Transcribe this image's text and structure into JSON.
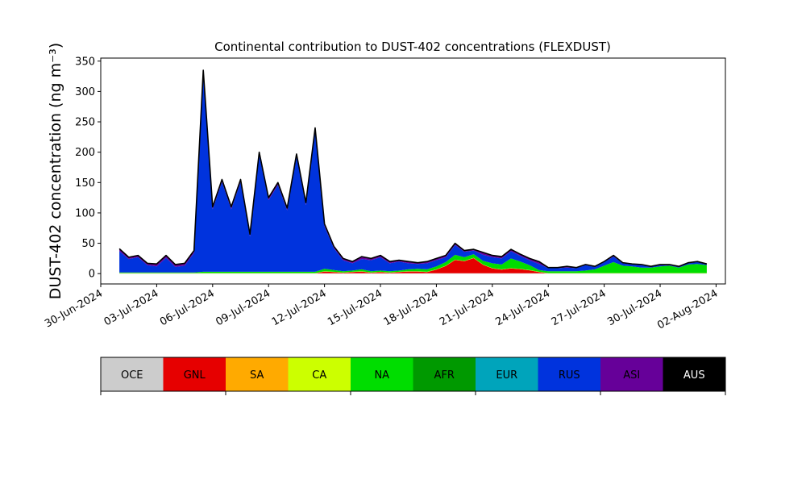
{
  "chart_data": {
    "type": "area",
    "stacked": true,
    "title": "Continental contribution to DUST-402 concentrations (FLEXDUST)",
    "ylabel": "DUST-402 concentration (ng m⁻³)",
    "xlabel": "",
    "ylim": [
      -17,
      355
    ],
    "xlim": [
      "2024-06-30T00:00",
      "2024-08-02T12:00"
    ],
    "yticks": [
      0,
      50,
      100,
      150,
      200,
      250,
      300,
      350
    ],
    "xticks": [
      "30-Jun-2024",
      "03-Jul-2024",
      "06-Jul-2024",
      "09-Jul-2024",
      "12-Jul-2024",
      "15-Jul-2024",
      "18-Jul-2024",
      "21-Jul-2024",
      "24-Jul-2024",
      "27-Jul-2024",
      "30-Jul-2024",
      "02-Aug-2024"
    ],
    "x_dates": [
      "2024-07-01",
      "2024-07-01T12:00",
      "2024-07-02",
      "2024-07-02T12:00",
      "2024-07-03",
      "2024-07-03T12:00",
      "2024-07-04",
      "2024-07-04T12:00",
      "2024-07-05",
      "2024-07-05T12:00",
      "2024-07-06",
      "2024-07-06T12:00",
      "2024-07-07",
      "2024-07-07T12:00",
      "2024-07-08",
      "2024-07-08T12:00",
      "2024-07-09",
      "2024-07-09T12:00",
      "2024-07-10",
      "2024-07-10T12:00",
      "2024-07-11",
      "2024-07-11T12:00",
      "2024-07-12",
      "2024-07-12T12:00",
      "2024-07-13",
      "2024-07-13T12:00",
      "2024-07-14",
      "2024-07-14T12:00",
      "2024-07-15",
      "2024-07-15T12:00",
      "2024-07-16",
      "2024-07-16T12:00",
      "2024-07-17",
      "2024-07-17T12:00",
      "2024-07-18",
      "2024-07-18T12:00",
      "2024-07-19",
      "2024-07-19T12:00",
      "2024-07-20",
      "2024-07-20T12:00",
      "2024-07-21",
      "2024-07-21T12:00",
      "2024-07-22",
      "2024-07-22T12:00",
      "2024-07-23",
      "2024-07-23T12:00",
      "2024-07-24",
      "2024-07-24T12:00",
      "2024-07-25",
      "2024-07-25T12:00",
      "2024-07-26",
      "2024-07-26T12:00",
      "2024-07-27",
      "2024-07-27T12:00",
      "2024-07-28",
      "2024-07-28T12:00",
      "2024-07-29",
      "2024-07-29T12:00",
      "2024-07-30",
      "2024-07-30T12:00",
      "2024-07-31",
      "2024-07-31T12:00",
      "2024-08-01",
      "2024-08-01T12:00"
    ],
    "total": [
      41,
      27,
      30,
      17,
      16,
      30,
      15,
      17,
      38,
      335,
      110,
      155,
      110,
      155,
      65,
      200,
      125,
      150,
      108,
      197,
      117,
      240,
      82,
      45,
      25,
      20,
      28,
      25,
      30,
      20,
      22,
      20,
      18,
      20,
      25,
      30,
      50,
      38,
      40,
      35,
      30,
      28,
      40,
      32,
      25,
      20,
      10,
      10,
      12,
      10,
      15,
      12,
      20,
      30,
      18,
      16,
      15,
      12,
      15,
      15,
      12,
      18,
      20,
      16
    ],
    "series": [
      {
        "name": "OCE",
        "color": "#cccccc",
        "values": [
          0.5,
          0.5,
          0.5,
          0.5,
          0.5,
          0.5,
          0.5,
          0.5,
          0.5,
          0.5,
          0.5,
          0.5,
          0.5,
          0.5,
          0.5,
          0.5,
          0.5,
          0.5,
          0.5,
          0.5,
          0.5,
          0.5,
          0.5,
          0.5,
          0.5,
          0.5,
          0.5,
          0.5,
          0.5,
          0.5,
          0.5,
          0.5,
          0.5,
          0.5,
          0.5,
          0.5,
          0.5,
          0.5,
          0.5,
          0.5,
          0.5,
          0.5,
          0.5,
          0.5,
          0.5,
          0.5,
          0.5,
          0.5,
          0.5,
          0.5,
          0.5,
          0.5,
          0.5,
          0.5,
          0.5,
          0.5,
          0.5,
          0.5,
          0.5,
          0.5,
          0.5,
          0.5,
          0.5,
          0.5
        ]
      },
      {
        "name": "GNL",
        "color": "#e60000",
        "values": [
          0,
          0,
          0,
          0,
          0,
          0,
          0,
          0,
          0,
          0,
          0,
          0,
          0,
          0,
          0,
          0,
          0,
          0,
          0,
          0,
          0,
          0,
          3,
          2,
          1,
          2,
          3,
          1,
          2,
          1,
          2,
          3,
          3,
          2,
          6,
          12,
          22,
          20,
          25,
          14,
          8,
          6,
          8,
          7,
          5,
          2,
          0,
          0,
          0,
          0,
          0,
          0,
          0,
          0,
          0,
          0,
          0,
          0,
          0,
          0,
          0,
          0,
          0,
          0
        ]
      },
      {
        "name": "SA",
        "color": "#ffaa00",
        "values": [
          0,
          0,
          0,
          0,
          0,
          0,
          0,
          0,
          0,
          0,
          0,
          0,
          0,
          0,
          0,
          0,
          0,
          0,
          0,
          0,
          0,
          0,
          0,
          0,
          0,
          0,
          0,
          0,
          0,
          0,
          0,
          0,
          0,
          0,
          0,
          0,
          0,
          0,
          0,
          0,
          0,
          0,
          0,
          0,
          0,
          0,
          0,
          0,
          0,
          0,
          0,
          0,
          0,
          0,
          0,
          0,
          0,
          0,
          0,
          0,
          0,
          0,
          0,
          0
        ]
      },
      {
        "name": "CA",
        "color": "#ccff00",
        "values": [
          0.5,
          0.5,
          0.5,
          0.5,
          0.5,
          0.5,
          0.5,
          0.5,
          0.5,
          0.5,
          0.5,
          0.5,
          0.5,
          0.5,
          0.5,
          0.5,
          0.5,
          0.5,
          0.5,
          0.5,
          0.5,
          0.5,
          0.5,
          0.5,
          0.5,
          0.5,
          0.5,
          0.5,
          0.5,
          0.5,
          0.5,
          0.5,
          0.5,
          0.5,
          0.5,
          0.5,
          0.5,
          0.5,
          0.5,
          0.5,
          0.5,
          0.5,
          0.5,
          0.5,
          0.5,
          0.5,
          0.5,
          0.5,
          0.5,
          0.5,
          0.5,
          0.5,
          0.5,
          0.5,
          0.5,
          0.5,
          0.5,
          0.5,
          0.5,
          0.5,
          0.5,
          0.5,
          0.5,
          0.5
        ]
      },
      {
        "name": "NA",
        "color": "#00dd00",
        "values": [
          1,
          1,
          1,
          1,
          1,
          1,
          1,
          1,
          1,
          2,
          2,
          2,
          2,
          2,
          2,
          2,
          2,
          2,
          2,
          2,
          2,
          2,
          4,
          3,
          2,
          2,
          3,
          2,
          2,
          2,
          2,
          3,
          4,
          4,
          5,
          6,
          8,
          6,
          6,
          6,
          8,
          8,
          16,
          12,
          8,
          3,
          3,
          3,
          3,
          3,
          4,
          6,
          12,
          18,
          12,
          11,
          9,
          9,
          11,
          12,
          9,
          14,
          15,
          13
        ]
      },
      {
        "name": "AFR",
        "color": "#009900",
        "values": [
          0,
          0,
          0,
          0,
          0,
          0,
          0,
          0,
          0,
          0,
          0,
          0,
          0,
          0,
          0,
          0,
          0,
          0,
          0,
          0,
          0,
          0,
          0,
          0,
          0,
          0,
          0,
          0,
          0,
          0,
          0,
          0,
          0,
          0,
          0,
          0,
          0,
          0,
          0,
          0,
          0,
          0,
          0,
          0,
          0,
          0,
          0,
          0,
          0,
          0,
          0,
          0,
          0,
          0,
          0,
          0,
          0,
          0,
          0,
          0,
          0,
          0,
          0,
          0
        ]
      },
      {
        "name": "EUR",
        "color": "#00a4bb",
        "values": [
          0,
          0,
          0,
          0,
          0,
          0,
          0,
          0,
          0,
          0,
          0,
          0,
          0,
          0,
          0,
          0,
          0,
          0,
          0,
          0,
          0,
          0,
          0,
          0,
          0,
          0,
          0,
          0,
          0,
          0,
          0,
          0,
          0,
          0,
          0,
          0,
          0,
          0,
          0,
          0,
          0,
          0,
          0,
          0,
          0,
          0,
          0,
          0,
          0,
          0,
          0,
          0,
          0,
          0,
          0,
          0,
          0,
          0,
          0,
          0,
          0,
          0,
          0,
          0
        ]
      },
      {
        "name": "RUS",
        "color": "#0033dd",
        "values": [
          35,
          22,
          25,
          12,
          10,
          24,
          9,
          11,
          32,
          328,
          103,
          148,
          103,
          148,
          58,
          193,
          118,
          143,
          101,
          190,
          110,
          233,
          70,
          36,
          18,
          12,
          17,
          18,
          22,
          13,
          15,
          10,
          8,
          10,
          10,
          8,
          16,
          9,
          6,
          10,
          10,
          10,
          12,
          9,
          8,
          10,
          5,
          5,
          6,
          5,
          9,
          4,
          6,
          9,
          4,
          3,
          4,
          2,
          2,
          1,
          1,
          2,
          3,
          1
        ]
      },
      {
        "name": "ASI",
        "color": "#660099",
        "values": [
          4,
          3,
          3,
          3,
          4,
          4,
          4,
          4,
          4,
          4,
          4,
          4,
          4,
          4,
          4,
          4,
          4,
          4,
          4,
          4,
          4,
          4,
          4,
          3,
          3,
          3,
          4,
          3,
          3,
          3,
          2,
          3,
          2,
          3,
          3,
          3,
          3,
          2,
          2,
          4,
          3,
          3,
          3,
          3,
          3,
          4,
          1,
          1,
          2,
          1,
          1,
          1,
          1,
          2,
          1,
          1,
          1,
          0,
          1,
          1,
          1,
          1,
          1,
          1
        ]
      },
      {
        "name": "AUS",
        "color": "#000000",
        "values": [
          0,
          0,
          0,
          0,
          0,
          0,
          0,
          0,
          0,
          0,
          0,
          0,
          0,
          0,
          0,
          0,
          0,
          0,
          0,
          0,
          0,
          0,
          0,
          0,
          0,
          0,
          0,
          0,
          0,
          0,
          0,
          0,
          0,
          0,
          0,
          0,
          0,
          0,
          0,
          0,
          0,
          0,
          0,
          0,
          0,
          0,
          0,
          0,
          0,
          0,
          0,
          0,
          0,
          0,
          0,
          0,
          0,
          0,
          0,
          0,
          0,
          0,
          0,
          0
        ]
      }
    ],
    "legend": [
      "OCE",
      "GNL",
      "SA",
      "CA",
      "NA",
      "AFR",
      "EUR",
      "RUS",
      "ASI",
      "AUS"
    ],
    "legend_text_colors": [
      "#000000",
      "#000000",
      "#000000",
      "#000000",
      "#000000",
      "#000000",
      "#000000",
      "#000000",
      "#000000",
      "#ffffff"
    ],
    "legend_placement": "bottom colorbar",
    "grid": false
  }
}
